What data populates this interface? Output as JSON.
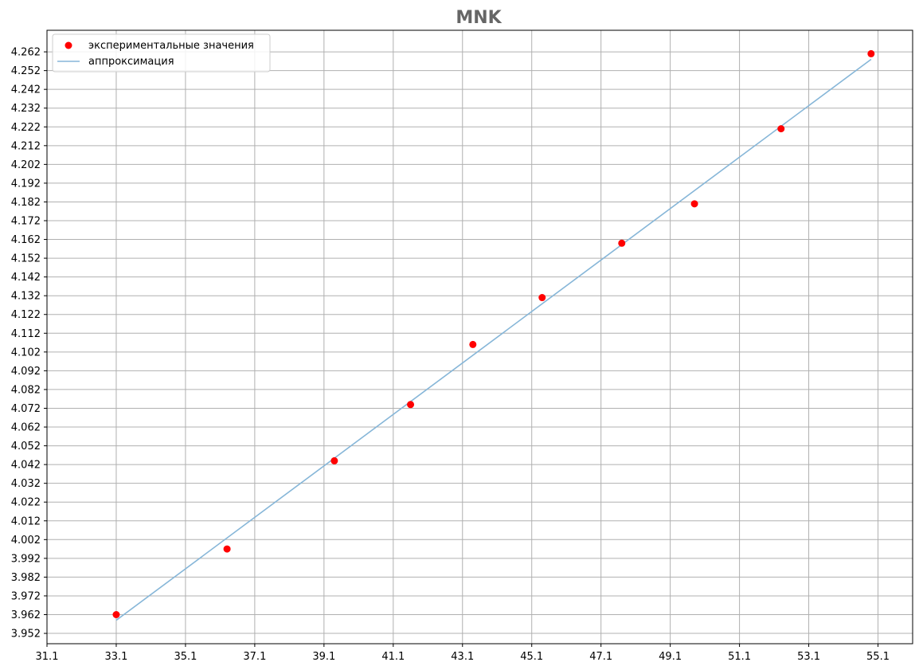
{
  "chart_data": {
    "type": "scatter",
    "title": "MNK",
    "title_color": "#666666",
    "xlabel": "",
    "ylabel": "",
    "xlim": [
      31.1,
      56.1
    ],
    "ylim": [
      3.9465,
      4.2735
    ],
    "x_ticks": [
      "31.1",
      "33.1",
      "35.1",
      "37.1",
      "39.1",
      "41.1",
      "43.1",
      "45.1",
      "47.1",
      "49.1",
      "51.1",
      "53.1",
      "55.1"
    ],
    "y_ticks": [
      "3.952",
      "3.962",
      "3.972",
      "3.982",
      "3.992",
      "4.002",
      "4.012",
      "4.022",
      "4.032",
      "4.042",
      "4.052",
      "4.062",
      "4.072",
      "4.082",
      "4.092",
      "4.102",
      "4.112",
      "4.122",
      "4.132",
      "4.142",
      "4.152",
      "4.162",
      "4.172",
      "4.182",
      "4.192",
      "4.202",
      "4.212",
      "4.222",
      "4.232",
      "4.242",
      "4.252",
      "4.262"
    ],
    "grid": true,
    "legend_position": "top-left",
    "series": [
      {
        "name": "экспериментальные значения",
        "kind": "scatter",
        "color": "#ff0000",
        "x": [
          33.1,
          36.3,
          39.4,
          41.6,
          43.4,
          45.4,
          47.7,
          49.8,
          52.3,
          54.9
        ],
        "y": [
          3.962,
          3.997,
          4.044,
          4.074,
          4.106,
          4.131,
          4.16,
          4.181,
          4.221,
          4.261
        ]
      },
      {
        "name": "аппроксимация",
        "kind": "line",
        "color": "#86b6d8",
        "x": [
          33.1,
          54.9
        ],
        "y": [
          3.959,
          4.258
        ]
      }
    ]
  }
}
